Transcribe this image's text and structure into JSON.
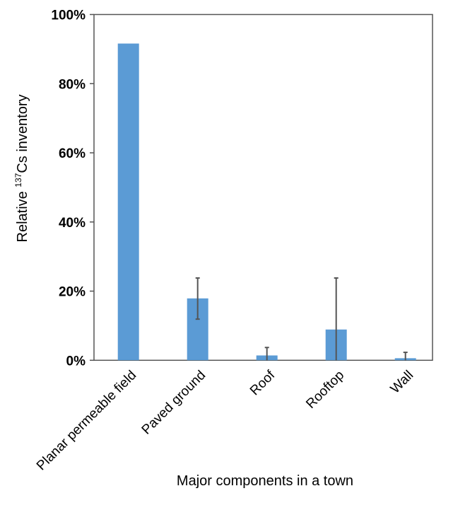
{
  "chart_data": {
    "type": "bar",
    "title": "",
    "xlabel": "Major components in a town",
    "ylabel": {
      "prefix": "Relative ",
      "superscript": "137",
      "suffix": "Cs inventory"
    },
    "categories": [
      "Planar permeable field",
      "Paved ground",
      "Roof",
      "Rooftop",
      "Wall"
    ],
    "values": [
      91.6,
      17.9,
      1.4,
      8.9,
      0.6
    ],
    "error_low": [
      null,
      11.9,
      0,
      0,
      0
    ],
    "error_high": [
      null,
      23.8,
      3.7,
      23.8,
      2.3
    ],
    "unit": "%",
    "ylim": [
      0,
      100
    ],
    "yticks": [
      0,
      20,
      40,
      60,
      80,
      100
    ],
    "ytick_labels": [
      "0%",
      "20%",
      "40%",
      "60%",
      "80%",
      "100%"
    ],
    "grid": false,
    "legend": "none",
    "colors": {
      "bar": "#5b9bd5",
      "error": "#555555",
      "axis": "#555555"
    }
  }
}
